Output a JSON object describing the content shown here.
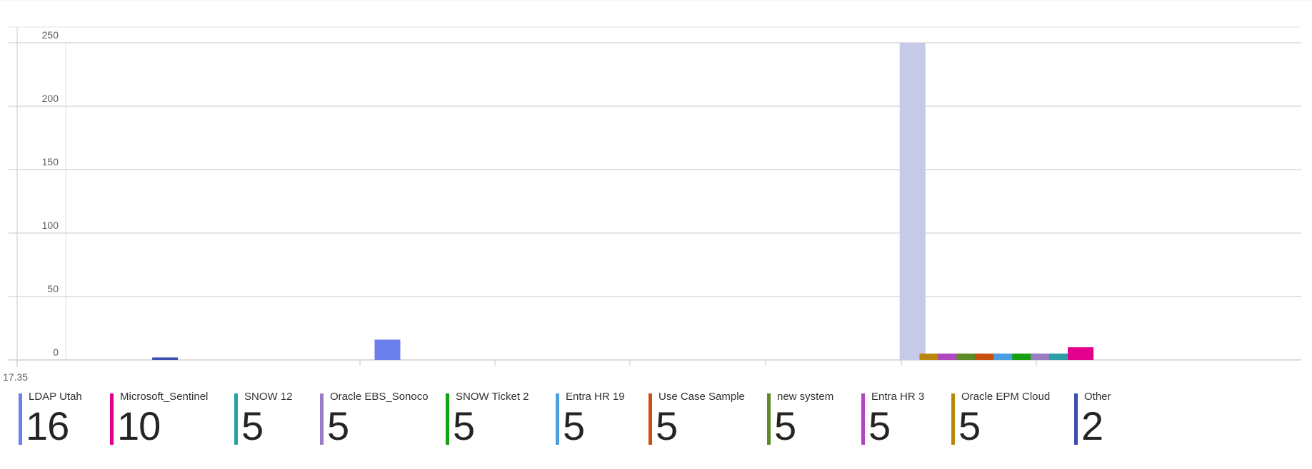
{
  "chart_data": {
    "type": "bar",
    "ylim": [
      0,
      250
    ],
    "yticks": [
      0,
      50,
      100,
      150,
      200,
      250
    ],
    "x_tick_label": "17.35",
    "grid": true,
    "legend_placement": "bottom",
    "bars": [
      {
        "x": 1.4,
        "value": 2,
        "series": "Other"
      },
      {
        "x": 5.0,
        "value": 16,
        "series": "LDAP Utah"
      },
      {
        "x": 13.5,
        "value": 250,
        "series": "selected-bucket"
      },
      {
        "x": 13.82,
        "value": 5,
        "series": "Oracle EPM Cloud"
      },
      {
        "x": 14.12,
        "value": 5,
        "series": "Entra HR 3"
      },
      {
        "x": 14.42,
        "value": 5,
        "series": "new system"
      },
      {
        "x": 14.72,
        "value": 5,
        "series": "Use Case Sample"
      },
      {
        "x": 15.02,
        "value": 5,
        "series": "Entra HR 19"
      },
      {
        "x": 15.32,
        "value": 5,
        "series": "SNOW Ticket 2"
      },
      {
        "x": 15.62,
        "value": 5,
        "series": "Oracle EBS_Sonoco"
      },
      {
        "x": 15.92,
        "value": 5,
        "series": "SNOW 12"
      },
      {
        "x": 16.22,
        "value": 10,
        "series": "Microsoft_Sentinel"
      }
    ],
    "series_colors": {
      "LDAP Utah": "#6b80ea",
      "Microsoft_Sentinel": "#e3008c",
      "SNOW 12": "#2aa0a4",
      "Oracle EBS_Sonoco": "#9a7cc4",
      "SNOW Ticket 2": "#13a10e",
      "Entra HR 19": "#4a9fe0",
      "Use Case Sample": "#ca5010",
      "new system": "#5f8a28",
      "Entra HR 3": "#b146c2",
      "Oracle EPM Cloud": "#b8860b",
      "Other": "#3b4fb0",
      "selected-bucket": "#c5cae9"
    }
  },
  "legend": [
    {
      "label": "LDAP Utah",
      "value": "16",
      "color": "#6b80ea"
    },
    {
      "label": "Microsoft_Sentinel",
      "value": "10",
      "color": "#e3008c"
    },
    {
      "label": "SNOW 12",
      "value": "5",
      "color": "#2aa0a4"
    },
    {
      "label": "Oracle EBS_Sonoco",
      "value": "5",
      "color": "#9a7cc4"
    },
    {
      "label": "SNOW Ticket 2",
      "value": "5",
      "color": "#13a10e"
    },
    {
      "label": "Entra HR 19",
      "value": "5",
      "color": "#4a9fe0"
    },
    {
      "label": "Use Case Sample",
      "value": "5",
      "color": "#ca5010"
    },
    {
      "label": "new system",
      "value": "5",
      "color": "#5f8a28"
    },
    {
      "label": "Entra HR 3",
      "value": "5",
      "color": "#b146c2"
    },
    {
      "label": "Oracle EPM Cloud",
      "value": "5",
      "color": "#b8860b"
    },
    {
      "label": "Other",
      "value": "2",
      "color": "#3b4fb0"
    }
  ]
}
